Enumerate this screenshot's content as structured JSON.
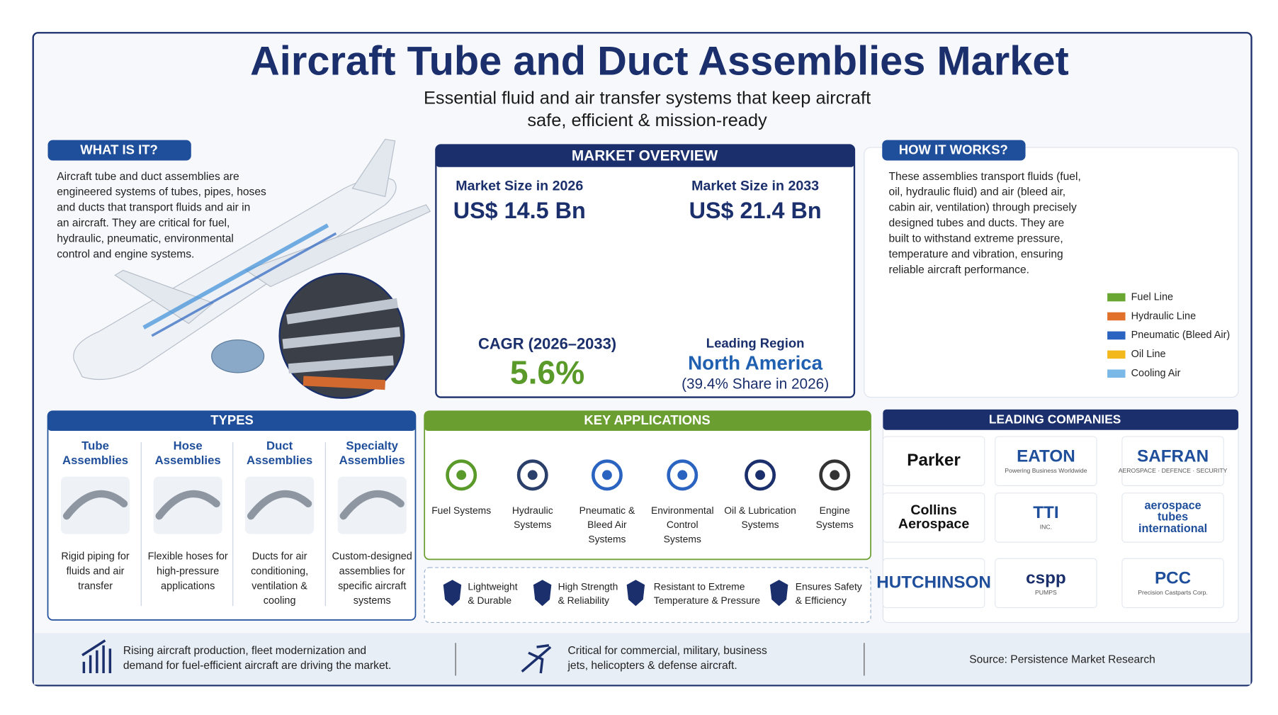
{
  "header": {
    "title": "Aircraft Tube and Duct Assemblies Market",
    "subtitle_lines": [
      "Essential fluid and air transfer systems that keep aircraft",
      "safe, efficient & mission-ready"
    ]
  },
  "what_is_it": {
    "heading": "WHAT IS IT?",
    "lines": [
      "Aircraft tube and duct assemblies are",
      "engineered systems of tubes, pipes, hoses",
      "and ducts that transport fluids and air in",
      "an aircraft. They are critical for fuel,",
      "hydraulic, pneumatic, environmental",
      "control and engine systems."
    ]
  },
  "market_overview": {
    "heading": "MARKET OVERVIEW",
    "size_2026_label": "Market Size in 2026",
    "size_2026": "US$ 14.5 Bn",
    "size_2033_label": "Market Size in 2033",
    "size_2033": "US$ 21.4 Bn",
    "cagr_label": "CAGR (2026–2033)",
    "cagr": "5.6%",
    "region_label": "Leading Region",
    "region": "North America",
    "region_share": "(39.4% Share in 2026)"
  },
  "how_it_works": {
    "heading": "HOW IT WORKS?",
    "lines": [
      "These assemblies transport fluids (fuel,",
      "oil, hydraulic fluid) and air (bleed air,",
      "cabin air, ventilation) through precisely",
      "designed tubes and ducts. They are",
      "built to withstand extreme pressure,",
      "temperature and vibration, ensuring",
      "reliable aircraft performance."
    ],
    "legend": [
      {
        "name": "Fuel Line",
        "color": "#6aa632"
      },
      {
        "name": "Hydraulic Line",
        "color": "#e0702a"
      },
      {
        "name": "Pneumatic (Bleed Air)",
        "color": "#2a64c0"
      },
      {
        "name": "Oil Line",
        "color": "#f2b81c"
      },
      {
        "name": "Cooling Air",
        "color": "#7ab8e8"
      }
    ]
  },
  "types": {
    "heading": "TYPES",
    "items": [
      {
        "name_lines": [
          "Tube",
          "Assemblies"
        ],
        "desc_lines": [
          "Rigid piping for",
          "fluids and air",
          "transfer"
        ]
      },
      {
        "name_lines": [
          "Hose",
          "Assemblies"
        ],
        "desc_lines": [
          "Flexible hoses for",
          "high-pressure",
          "applications"
        ]
      },
      {
        "name_lines": [
          "Duct",
          "Assemblies"
        ],
        "desc_lines": [
          "Ducts for air",
          "conditioning,",
          "ventilation &",
          "cooling"
        ]
      },
      {
        "name_lines": [
          "Specialty",
          "Assemblies"
        ],
        "desc_lines": [
          "Custom-designed",
          "assemblies for",
          "specific aircraft",
          "systems"
        ]
      }
    ]
  },
  "key_applications": {
    "heading": "KEY APPLICATIONS",
    "items": [
      {
        "lines": [
          "Fuel Systems"
        ]
      },
      {
        "lines": [
          "Hydraulic",
          "Systems"
        ]
      },
      {
        "lines": [
          "Pneumatic &",
          "Bleed Air",
          "Systems"
        ]
      },
      {
        "lines": [
          "Environmental",
          "Control",
          "Systems"
        ]
      },
      {
        "lines": [
          "Oil & Lubrication",
          "Systems"
        ]
      },
      {
        "lines": [
          "Engine",
          "Systems"
        ]
      }
    ],
    "features": [
      {
        "lines": [
          "Lightweight",
          "& Durable"
        ]
      },
      {
        "lines": [
          "High Strength",
          "& Reliability"
        ]
      },
      {
        "lines": [
          "Resistant to Extreme",
          "Temperature & Pressure"
        ]
      },
      {
        "lines": [
          "Ensures Safety",
          "& Efficiency"
        ]
      }
    ]
  },
  "leading_companies": {
    "heading": "LEADING COMPANIES",
    "companies": [
      {
        "name_lines": [
          "Parker"
        ]
      },
      {
        "name_lines": [
          "EATON"
        ],
        "tagline": "Powering Business Worldwide"
      },
      {
        "name_lines": [
          "SAFRAN"
        ],
        "tagline": "AEROSPACE · DEFENCE · SECURITY"
      },
      {
        "name_lines": [
          "Collins",
          "Aerospace"
        ]
      },
      {
        "name_lines": [
          "TTI"
        ],
        "tagline": "INC."
      },
      {
        "name_lines": [
          "aerospace",
          "tubes",
          "international"
        ]
      },
      {
        "name_lines": [
          "HUTCHINSON"
        ]
      },
      {
        "name_lines": [
          "cspp"
        ],
        "tagline": "PUMPS"
      },
      {
        "name_lines": [
          "PCC"
        ],
        "tagline": "Precision Castparts Corp."
      }
    ]
  },
  "footer": {
    "items": [
      {
        "lines": [
          "Rising aircraft production, fleet modernization and",
          "demand for fuel-efficient aircraft are driving the market."
        ]
      },
      {
        "lines": [
          "Critical for commercial, military, business",
          "jets, helicopters & defense aircraft."
        ]
      }
    ],
    "source": "Source: Persistence Market Research"
  }
}
